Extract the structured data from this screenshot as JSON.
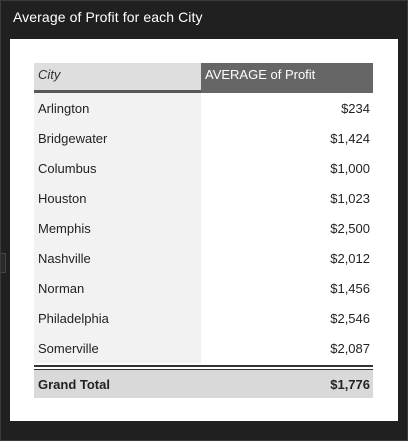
{
  "widget": {
    "title": "Average of Profit for each City"
  },
  "table": {
    "headers": {
      "city": "City",
      "average": "AVERAGE of Profit"
    },
    "rows": [
      {
        "city": "Arlington",
        "value": "$234"
      },
      {
        "city": "Bridgewater",
        "value": "$1,424"
      },
      {
        "city": "Columbus",
        "value": "$1,000"
      },
      {
        "city": "Houston",
        "value": "$1,023"
      },
      {
        "city": "Memphis",
        "value": "$2,500"
      },
      {
        "city": "Nashville",
        "value": "$2,012"
      },
      {
        "city": "Norman",
        "value": "$1,456"
      },
      {
        "city": "Philadelphia",
        "value": "$2,546"
      },
      {
        "city": "Somerville",
        "value": "$2,087"
      }
    ],
    "total": {
      "label": "Grand Total",
      "value": "$1,776"
    }
  },
  "colors": {
    "background": "#202020",
    "header_dark": "#666666",
    "header_light": "#dedede",
    "city_column": "#f2f2f2",
    "total_row": "#d9d9d9"
  }
}
